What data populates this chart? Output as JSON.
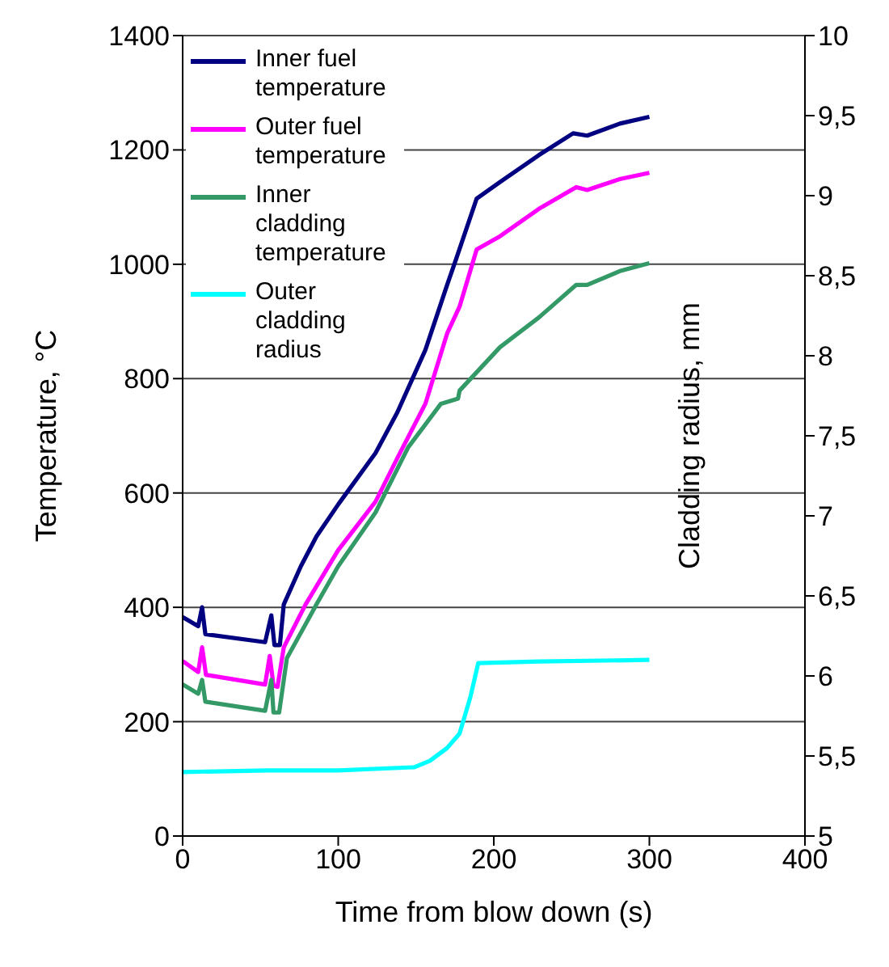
{
  "chart_data": {
    "type": "line",
    "xlabel": "Time from blow down (s)",
    "ylabel": "Temperature, °C",
    "y2label": "Cladding radius, mm",
    "xlim": [
      0,
      400
    ],
    "xticks": [
      0,
      100,
      200,
      300,
      400
    ],
    "ylim": [
      0,
      1400
    ],
    "yticks": [
      0,
      200,
      400,
      600,
      800,
      1000,
      1200,
      1400
    ],
    "y2lim": [
      5,
      10
    ],
    "y2ticks": [
      5,
      {
        "value": 5.5,
        "label": "5,5"
      },
      6,
      {
        "value": 6.5,
        "label": "6,5"
      },
      7,
      {
        "value": 7.5,
        "label": "7,5"
      },
      8,
      {
        "value": 8.5,
        "label": "8,5"
      },
      9,
      {
        "value": 9.5,
        "label": "9,5"
      },
      10
    ],
    "grid": "y",
    "legend": "top left",
    "marker": "none",
    "line_style": "solid",
    "series": [
      {
        "name": "Inner fuel temperature",
        "color": "#000080",
        "x": [
          0,
          10,
          12.5,
          14.6,
          53,
          57,
          59,
          62.5,
          65,
          76,
          86,
          100,
          124,
          138,
          156,
          170,
          176,
          189,
          204,
          229,
          251,
          260,
          281,
          300
        ],
        "values": [
          383,
          367,
          400,
          353,
          339,
          386,
          334,
          334,
          405,
          472,
          524,
          580,
          670,
          741,
          850,
          964,
          1011,
          1115,
          1144,
          1191,
          1229,
          1225,
          1246,
          1258
        ]
      },
      {
        "name": "Outer fuel temperature",
        "color": "#ff00ff",
        "x": [
          0,
          10,
          12.5,
          15,
          53,
          56,
          58.4,
          61,
          65,
          79,
          100,
          124,
          138,
          156,
          170,
          178,
          189,
          204,
          229,
          253,
          260,
          281,
          300
        ],
        "values": [
          306,
          287,
          330,
          282,
          265,
          315,
          263,
          261,
          330,
          405,
          500,
          585,
          661,
          756,
          879,
          926,
          1026,
          1049,
          1097,
          1135,
          1130,
          1149,
          1160
        ]
      },
      {
        "name": "Inner cladding temperature",
        "color": "#339966",
        "x": [
          0,
          10,
          12.5,
          14.6,
          53,
          57,
          58.4,
          62,
          67,
          86,
          100,
          124,
          145,
          166,
          177,
          178,
          204,
          229,
          253,
          260,
          281,
          300
        ],
        "values": [
          265,
          249,
          273,
          235,
          219,
          273,
          216,
          216,
          311,
          405,
          472,
          566,
          680,
          756,
          765,
          779,
          855,
          907,
          964,
          964,
          988,
          1002
        ]
      },
      {
        "name": "Outer cladding radius",
        "color": "#00ffff",
        "axis": "y2",
        "x": [
          0,
          55,
          100,
          149,
          159,
          170,
          178,
          185,
          190,
          229,
          300
        ],
        "values": [
          5.4,
          5.41,
          5.41,
          5.43,
          5.47,
          5.55,
          5.64,
          5.87,
          6.08,
          6.09,
          6.1
        ]
      }
    ]
  }
}
